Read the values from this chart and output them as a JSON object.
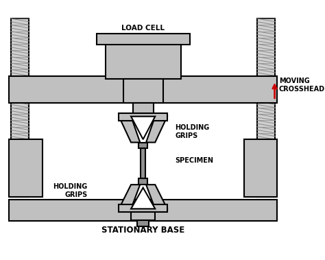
{
  "background_color": "#ffffff",
  "gray_fill": "#c0c0c0",
  "dark_gray_fill": "#909090",
  "edge_color": "#000000",
  "line_width": 1.5,
  "title": "STATIONARY BASE",
  "label_load_cell": "LOAD CELL",
  "label_moving_crosshead": "MOVING\nCROSSHEAD",
  "label_holding_grips_top": "HOLDING\nGRIPS",
  "label_holding_grips_bot": "HOLDING\nGRIPS",
  "label_specimen": "SPECIMEN",
  "arrow_color": "#cc0000",
  "text_color": "#000000",
  "font_size_labels": 7.0,
  "font_size_bottom": 8.5
}
